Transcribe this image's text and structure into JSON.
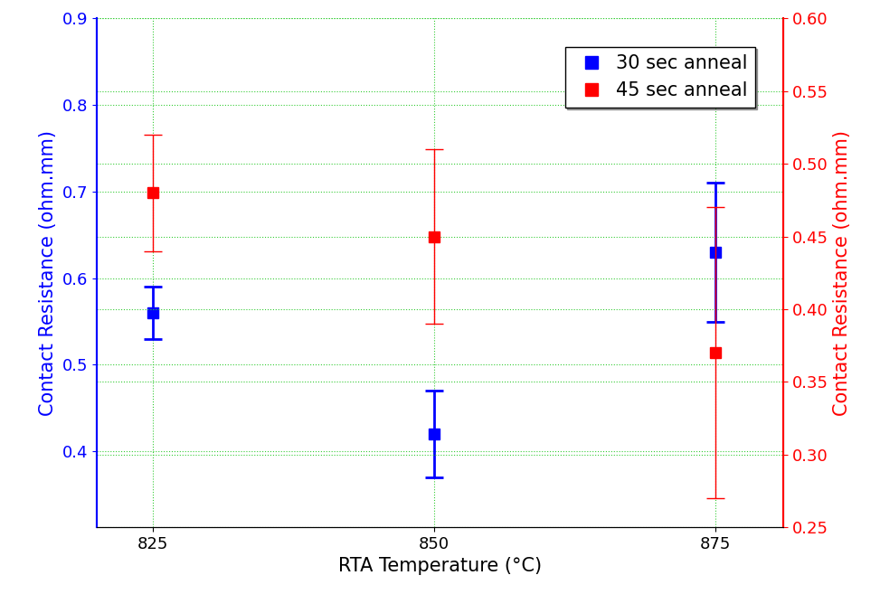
{
  "chart_data": {
    "type": "scatter",
    "x_label": "RTA Temperature (°C)",
    "y_label": "Contact Resistance (ohm.mm)",
    "y2_label": "Contact Resistance (ohm.mm)",
    "x": [
      825,
      850,
      875
    ],
    "xlim": [
      820,
      881
    ],
    "xticks": [
      825,
      850,
      875
    ],
    "ylim": [
      0.3125,
      0.9
    ],
    "yticks": [
      0.4,
      0.5,
      0.6,
      0.7,
      0.8,
      0.9
    ],
    "y2lim": [
      0.25,
      0.6
    ],
    "y2ticks": [
      0.25,
      {
        "value": 0.3,
        "label": "0.30"
      },
      0.35,
      {
        "value": 0.4,
        "label": "0.40"
      },
      0.45,
      {
        "value": 0.5,
        "label": "0.50"
      },
      0.55,
      {
        "value": 0.6,
        "label": "0.60"
      }
    ],
    "grid": true,
    "legend": "upper right",
    "series": [
      {
        "name": "30 sec anneal",
        "color": "#0000ff",
        "marker": "square",
        "axis": "y",
        "values": [
          0.56,
          0.42,
          0.63
        ],
        "errors": [
          0.03,
          0.05,
          0.08
        ]
      },
      {
        "name": "45 sec anneal",
        "color": "#ff0000",
        "marker": "square",
        "axis": "y2",
        "values": [
          0.48,
          0.45,
          0.37
        ],
        "errors": [
          0.04,
          0.06,
          0.1
        ]
      }
    ]
  }
}
